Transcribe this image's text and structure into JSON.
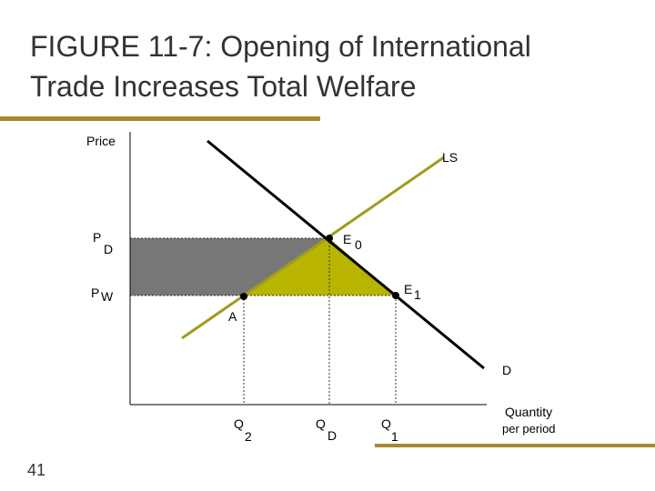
{
  "header": {
    "title_lines": [
      "FIGURE 11-7: Opening of International",
      "Trade Increases Total Welfare"
    ]
  },
  "axes": {
    "y_label": "Price",
    "x_label_lines": [
      "Quantity",
      "per period"
    ]
  },
  "curves": {
    "supply": "LS",
    "demand": "D"
  },
  "price_levels": [
    {
      "main": "P",
      "sub": "D"
    },
    {
      "main": "P",
      "sub": "W"
    }
  ],
  "points": [
    {
      "main": "E",
      "sub": "0"
    },
    {
      "main": "E",
      "sub": "1"
    },
    {
      "main": "A"
    }
  ],
  "quantities": [
    {
      "main": "Q",
      "sub": "2"
    },
    {
      "main": "Q",
      "sub": "D"
    },
    {
      "main": "Q",
      "sub": "1"
    }
  ],
  "page_number": "41"
}
